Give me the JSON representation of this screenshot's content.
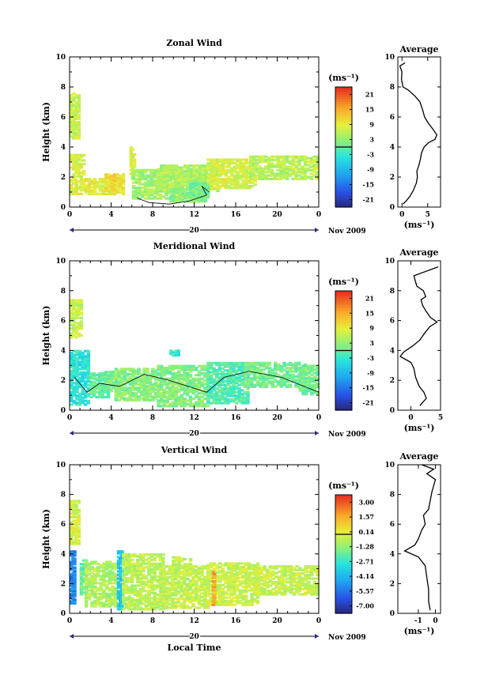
{
  "chart_data": [
    {
      "type": "heatmap",
      "title": "Zonal Wind",
      "ylabel": "Height (km)",
      "ylim": [
        0,
        10
      ],
      "x_ticks": [
        "0",
        "4",
        "8",
        "12",
        "16",
        "20",
        "0"
      ],
      "y_ticks": [
        "0",
        "2",
        "4",
        "6",
        "8",
        "10"
      ],
      "day_label": "20",
      "date_label": "Nov 2009",
      "colorbar": {
        "unit": "(ms⁻¹)",
        "ticks": [
          "21",
          "15",
          "9",
          "3",
          "-3",
          "-9",
          "-15",
          "-21"
        ],
        "range": [
          -24,
          24
        ]
      },
      "average": {
        "title": "Average",
        "xlabel": "(ms⁻¹)",
        "x_ticks": [
          "0",
          "5"
        ],
        "x_tick_values": [
          0,
          5
        ],
        "xlim": [
          -0.8,
          7.5
        ],
        "ylim": [
          0,
          10
        ],
        "profile": [
          [
            0.2,
            0.2
          ],
          [
            0.8,
            0.4
          ],
          [
            1.5,
            0.7
          ],
          [
            2.2,
            1.1
          ],
          [
            2.8,
            1.6
          ],
          [
            3.0,
            2.0
          ],
          [
            2.9,
            2.4
          ],
          [
            3.3,
            2.8
          ],
          [
            3.6,
            3.2
          ],
          [
            3.8,
            3.6
          ],
          [
            4.3,
            4.0
          ],
          [
            5.2,
            4.3
          ],
          [
            6.4,
            4.5
          ],
          [
            6.8,
            4.8
          ],
          [
            6.0,
            5.2
          ],
          [
            5.1,
            5.6
          ],
          [
            4.4,
            6.0
          ],
          [
            4.0,
            6.5
          ],
          [
            3.5,
            7.0
          ],
          [
            2.5,
            7.4
          ],
          [
            1.2,
            7.8
          ],
          [
            0.2,
            8.0
          ],
          [
            -0.1,
            8.5
          ],
          [
            0.0,
            9.0
          ],
          [
            -0.4,
            9.4
          ],
          [
            0.6,
            9.6
          ]
        ]
      }
    },
    {
      "type": "heatmap",
      "title": "Meridional Wind",
      "ylabel": "Height (km)",
      "ylim": [
        0,
        10
      ],
      "x_ticks": [
        "0",
        "4",
        "8",
        "12",
        "16",
        "20",
        "0"
      ],
      "y_ticks": [
        "0",
        "2",
        "4",
        "6",
        "8",
        "10"
      ],
      "day_label": "20",
      "date_label": "Nov 2009",
      "colorbar": {
        "unit": "(ms⁻¹)",
        "ticks": [
          "21",
          "15",
          "9",
          "3",
          "-3",
          "-9",
          "-15",
          "-21"
        ],
        "range": [
          -24,
          24
        ]
      },
      "average": {
        "title": "Average",
        "xlabel": "(ms⁻¹)",
        "x_ticks": [
          "0",
          "5"
        ],
        "x_tick_values": [
          0,
          5
        ],
        "xlim": [
          -2.2,
          5
        ],
        "ylim": [
          0,
          10
        ],
        "profile": [
          [
            1.5,
            0.3
          ],
          [
            2.6,
            0.8
          ],
          [
            2.2,
            1.2
          ],
          [
            1.4,
            1.6
          ],
          [
            0.8,
            2.2
          ],
          [
            0.5,
            2.8
          ],
          [
            0.0,
            3.2
          ],
          [
            -1.8,
            3.6
          ],
          [
            -1.2,
            3.9
          ],
          [
            0.3,
            4.3
          ],
          [
            1.5,
            4.7
          ],
          [
            2.4,
            5.2
          ],
          [
            3.2,
            5.6
          ],
          [
            4.4,
            5.9
          ],
          [
            3.3,
            6.2
          ],
          [
            2.6,
            6.6
          ],
          [
            2.0,
            7.0
          ],
          [
            1.7,
            7.4
          ],
          [
            2.5,
            7.6
          ],
          [
            2.1,
            8.0
          ],
          [
            1.0,
            8.3
          ],
          [
            0.5,
            9.0
          ],
          [
            4.6,
            9.6
          ]
        ]
      }
    },
    {
      "type": "heatmap",
      "title": "Vertical Wind",
      "ylabel": "Height (km)",
      "xlabel": "Local Time",
      "ylim": [
        0,
        10
      ],
      "x_ticks": [
        "0",
        "4",
        "8",
        "12",
        "16",
        "20",
        "0"
      ],
      "y_ticks": [
        "0",
        "2",
        "4",
        "6",
        "8",
        "10"
      ],
      "day_label": "20",
      "date_label": "Nov 2009",
      "colorbar": {
        "unit": "(ms⁻¹)",
        "ticks": [
          "3.00",
          "1.57",
          "0.14",
          "-1.28",
          "-2.71",
          "-4.14",
          "-5.57",
          "-7.00"
        ],
        "range": [
          -8,
          4
        ]
      },
      "average": {
        "title": "Average",
        "xlabel": "(ms⁻¹)",
        "x_ticks": [
          "-1",
          "0"
        ],
        "x_tick_values": [
          -1,
          0
        ],
        "xlim": [
          -2.2,
          0.3
        ],
        "ylim": [
          0,
          10
        ],
        "profile": [
          [
            -0.3,
            0.2
          ],
          [
            -0.4,
            0.8
          ],
          [
            -0.4,
            1.6
          ],
          [
            -0.5,
            2.4
          ],
          [
            -0.6,
            3.2
          ],
          [
            -1.0,
            3.8
          ],
          [
            -1.8,
            4.2
          ],
          [
            -1.2,
            4.6
          ],
          [
            -1.0,
            5.0
          ],
          [
            -0.8,
            5.6
          ],
          [
            -0.6,
            6.0
          ],
          [
            -0.7,
            6.6
          ],
          [
            -0.4,
            7.0
          ],
          [
            -0.3,
            7.6
          ],
          [
            -0.2,
            8.2
          ],
          [
            -0.1,
            8.6
          ],
          [
            0.0,
            9.0
          ],
          [
            -0.5,
            9.4
          ],
          [
            -0.1,
            9.7
          ],
          [
            -0.8,
            10.0
          ]
        ]
      }
    }
  ]
}
